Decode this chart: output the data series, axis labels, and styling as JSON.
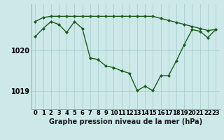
{
  "xlabel": "Graphe pression niveau de la mer (hPa)",
  "background_color": "#cce8e8",
  "grid_color": "#aacfcf",
  "line_color": "#1a5c1a",
  "hours": [
    0,
    1,
    2,
    3,
    4,
    5,
    6,
    7,
    8,
    9,
    10,
    11,
    12,
    13,
    14,
    15,
    16,
    17,
    18,
    19,
    20,
    21,
    22,
    23
  ],
  "pressure": [
    1020.35,
    1020.55,
    1020.72,
    1020.65,
    1020.45,
    1020.72,
    1020.55,
    1019.82,
    1019.78,
    1019.62,
    1019.58,
    1019.5,
    1019.44,
    1019.01,
    1019.12,
    1019.01,
    1019.38,
    1019.38,
    1019.75,
    1020.15,
    1020.52,
    1020.48,
    1020.32,
    1020.52
  ],
  "pressure_max": [
    1020.72,
    1020.82,
    1020.85,
    1020.85,
    1020.85,
    1020.85,
    1020.85,
    1020.85,
    1020.85,
    1020.85,
    1020.85,
    1020.85,
    1020.85,
    1020.85,
    1020.85,
    1020.85,
    1020.8,
    1020.75,
    1020.7,
    1020.65,
    1020.6,
    1020.55,
    1020.5,
    1020.52
  ],
  "ylim": [
    1018.55,
    1021.15
  ],
  "yticks": [
    1019.0,
    1020.0
  ],
  "xlabel_fontsize": 7,
  "tick_fontsize": 6
}
